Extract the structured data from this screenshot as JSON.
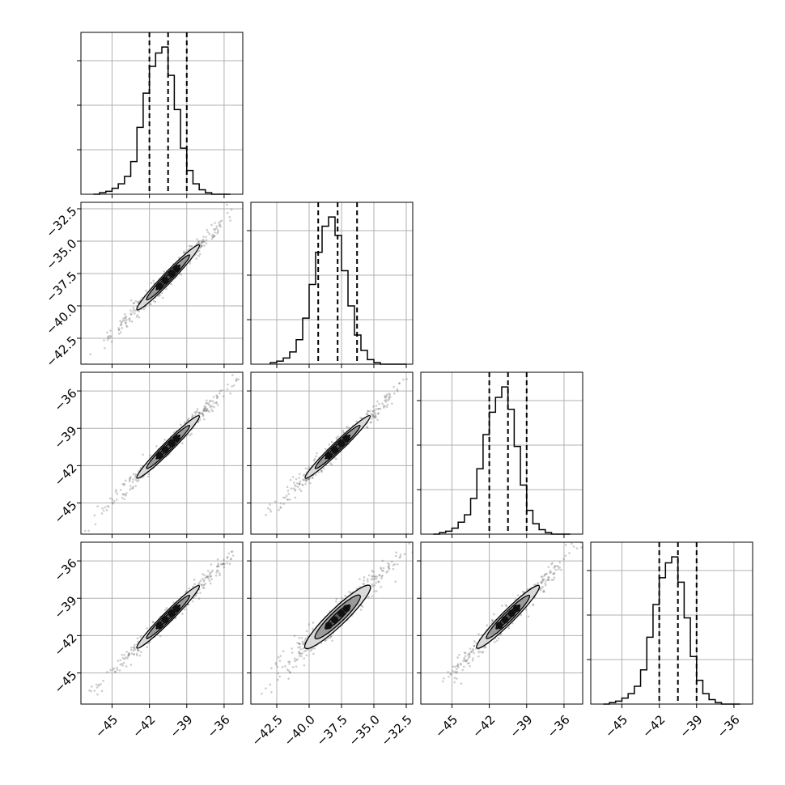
{
  "chart_data": {
    "type": "corner",
    "grid": true,
    "colors": {
      "line": "#000000",
      "grid": "#b0b0b0",
      "contour_fill_outer": "#d9d9d9",
      "contour_fill_mid": "#9a9a9a",
      "points": "#6f6f6f"
    },
    "axes": [
      {
        "ticks": [
          -45,
          -42,
          -39,
          -36
        ],
        "tick_labels": [
          "−45",
          "−42",
          "−39",
          "−36"
        ],
        "range": [
          -47.5,
          -34.5
        ]
      },
      {
        "ticks": [
          -42.5,
          -40.0,
          -37.5,
          -35.0,
          -32.5
        ],
        "tick_labels": [
          "−42.5",
          "−40.0",
          "−37.5",
          "−35.0",
          "−32.5"
        ],
        "range": [
          -44.5,
          -32.0
        ]
      },
      {
        "ticks": [
          -45,
          -42,
          -39,
          -36
        ],
        "tick_labels": [
          "−45",
          "−42",
          "−39",
          "−36"
        ],
        "range": [
          -47.5,
          -34.5
        ]
      },
      {
        "ticks": [
          -45,
          -42,
          -39,
          -36
        ],
        "tick_labels": [
          "−45",
          "−42",
          "−39",
          "−36"
        ],
        "range": [
          -47.5,
          -34.5
        ]
      }
    ],
    "histograms": [
      {
        "bin_edges": [
          -46.5,
          -46.0,
          -45.5,
          -45.0,
          -44.5,
          -44.0,
          -43.5,
          -43.0,
          -42.5,
          -42.0,
          -41.5,
          -41.0,
          -40.5,
          -40.0,
          -39.5,
          -39.0,
          -38.5,
          -38.0,
          -37.5,
          -37.0,
          -36.5,
          -36.0,
          -35.5
        ],
        "counts": [
          0,
          1,
          2,
          4,
          7,
          12,
          22,
          45,
          68,
          86,
          95,
          99,
          80,
          57,
          31,
          16,
          7,
          3,
          1,
          0,
          0,
          0
        ],
        "quantiles": [
          -42.0,
          -40.5,
          -39.0
        ]
      },
      {
        "bin_edges": [
          -43.0,
          -42.5,
          -42.0,
          -41.5,
          -41.0,
          -40.5,
          -40.0,
          -39.5,
          -39.0,
          -38.5,
          -38.0,
          -37.5,
          -37.0,
          -36.5,
          -36.0,
          -35.5,
          -35.0,
          -34.5,
          -34.0,
          -33.5,
          -33.0,
          -32.5
        ],
        "counts": [
          1,
          2,
          4,
          8,
          16,
          30,
          52,
          73,
          90,
          96,
          84,
          61,
          38,
          19,
          9,
          3,
          1,
          0,
          0,
          0,
          0
        ],
        "quantiles": [
          -39.3,
          -37.8,
          -36.3
        ]
      },
      {
        "bin_edges": [
          -46.5,
          -46.0,
          -45.5,
          -45.0,
          -44.5,
          -44.0,
          -43.5,
          -43.0,
          -42.5,
          -42.0,
          -41.5,
          -41.0,
          -40.5,
          -40.0,
          -39.5,
          -39.0,
          -38.5,
          -38.0,
          -37.5,
          -37.0,
          -36.5,
          -36.0,
          -35.5
        ],
        "counts": [
          0,
          1,
          2,
          4,
          8,
          13,
          24,
          44,
          67,
          82,
          92,
          99,
          84,
          59,
          33,
          16,
          7,
          3,
          1,
          0,
          0,
          0
        ],
        "quantiles": [
          -42.0,
          -40.5,
          -39.0
        ]
      },
      {
        "bin_edges": [
          -46.5,
          -46.0,
          -45.5,
          -45.0,
          -44.5,
          -44.0,
          -43.5,
          -43.0,
          -42.5,
          -42.0,
          -41.5,
          -41.0,
          -40.5,
          -40.0,
          -39.5,
          -39.0,
          -38.5,
          -38.0,
          -37.5,
          -37.0,
          -36.5,
          -36.0,
          -35.5
        ],
        "counts": [
          0,
          1,
          2,
          4,
          7,
          12,
          23,
          45,
          67,
          85,
          95,
          99,
          82,
          58,
          32,
          16,
          7,
          3,
          1,
          0,
          0,
          0
        ],
        "quantiles": [
          -42.0,
          -40.5,
          -39.0
        ]
      }
    ],
    "pairs": [
      {
        "row": 1,
        "col": 0,
        "center": [
          -40.5,
          -37.8
        ],
        "slope": 1.0,
        "spread": 0.35
      },
      {
        "row": 2,
        "col": 0,
        "center": [
          -40.5,
          -40.5
        ],
        "slope": 1.0,
        "spread": 0.35
      },
      {
        "row": 2,
        "col": 1,
        "center": [
          -37.8,
          -40.5
        ],
        "slope": 1.0,
        "spread": 0.35
      },
      {
        "row": 3,
        "col": 0,
        "center": [
          -40.5,
          -40.5
        ],
        "slope": 1.0,
        "spread": 0.35
      },
      {
        "row": 3,
        "col": 1,
        "center": [
          -37.8,
          -40.5
        ],
        "slope": 1.0,
        "spread": 0.6
      },
      {
        "row": 3,
        "col": 2,
        "center": [
          -40.5,
          -40.5
        ],
        "slope": 1.0,
        "spread": 0.45
      }
    ]
  }
}
